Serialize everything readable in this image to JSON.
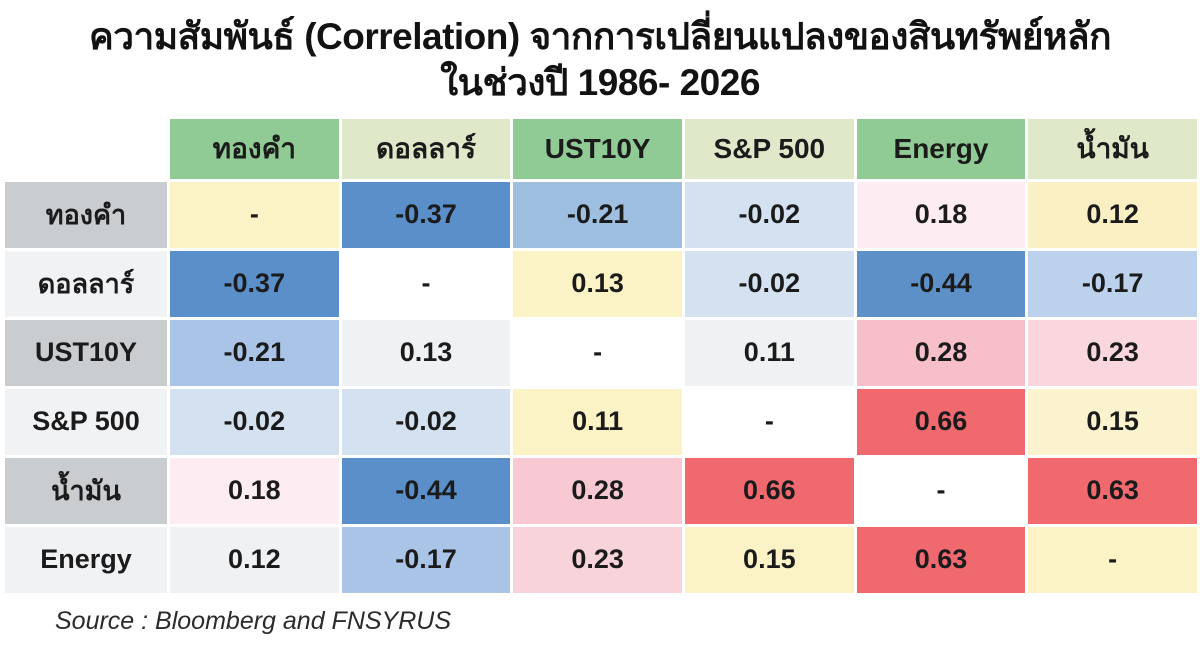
{
  "title": {
    "line1": "ความสัมพันธ์ (Correlation) จากการเปลี่ยนแปลงของสินทรัพย์หลัก",
    "line2": "ในช่วงปี 1986- 2026"
  },
  "source": "Source : Bloomberg and FNSYRUS",
  "colors": {
    "header_green_dark": "#90cb96",
    "header_green_light": "#dfe9ca",
    "row_header_gray": "#c9cdd0",
    "row_header_light": "#f1f2f4",
    "negative_strong_blue": "#5a8fca",
    "positive_strong_red": "#f0696f",
    "weak_cream": "#fbf3c6",
    "diagonal_white": "#ffffff",
    "text": "#1b1b1b"
  },
  "chart_data": {
    "type": "heatmap",
    "title": "ความสัมพันธ์ (Correlation) จากการเปลี่ยนแปลงของสินทรัพย์หลัก ในช่วงปี 1986- 2026",
    "subtitle": "Correlation of major asset returns, 1986-2026",
    "legend_position": "none",
    "grid": false,
    "value_range": [
      -1,
      1
    ],
    "columns": [
      "ทองคำ",
      "ดอลลาร์",
      "UST10Y",
      "S&P 500",
      "Energy",
      "น้ำมัน"
    ],
    "rows": [
      "ทองคำ",
      "ดอลลาร์",
      "UST10Y",
      "S&P 500",
      "น้ำมัน",
      "Energy"
    ],
    "col_header_colors": [
      "#90cb96",
      "#dfe9ca",
      "#90cb96",
      "#dfe9ca",
      "#90cb96",
      "#dfe9ca"
    ],
    "row_header_colors": [
      "#c9cdd0",
      "#f1f2f4",
      "#c9cdd0",
      "#f1f2f4",
      "#c9cdd0",
      "#f1f2f4"
    ],
    "values": [
      [
        "-",
        "-0.37",
        "-0.21",
        "-0.02",
        "0.18",
        "0.12"
      ],
      [
        "-0.37",
        "-",
        "0.13",
        "-0.02",
        "-0.44",
        "-0.17"
      ],
      [
        "-0.21",
        "0.13",
        "-",
        "0.11",
        "0.28",
        "0.23"
      ],
      [
        "-0.02",
        "-0.02",
        "0.11",
        "-",
        "0.66",
        "0.15"
      ],
      [
        "0.18",
        "-0.44",
        "0.28",
        "0.66",
        "-",
        "0.63"
      ],
      [
        "0.12",
        "-0.17",
        "0.23",
        "0.15",
        "0.63",
        "-"
      ]
    ],
    "cell_colors": [
      [
        "#fbf3c6",
        "#5a8fca",
        "#9fbfe0",
        "#d3e1f1",
        "#fdedf2",
        "#faf0c4"
      ],
      [
        "#5a8fca",
        "#ffffff",
        "#fbf3c6",
        "#d3e1f1",
        "#5e90c8",
        "#bcd2ec"
      ],
      [
        "#a9c4e6",
        "#f0f1f3",
        "#ffffff",
        "#f0f1f3",
        "#f6bfca",
        "#fad6dd"
      ],
      [
        "#d3e1f1",
        "#d3e1f1",
        "#fbf3c6",
        "#ffffff",
        "#f0696f",
        "#fbf3cd"
      ],
      [
        "#fdedf2",
        "#5a8fca",
        "#f8c9d3",
        "#f0696f",
        "#ffffff",
        "#f0696f"
      ],
      [
        "#f0f1f3",
        "#a9c4e6",
        "#f9d3da",
        "#fbf3c6",
        "#f0696f",
        "#fbf3c6"
      ]
    ]
  }
}
